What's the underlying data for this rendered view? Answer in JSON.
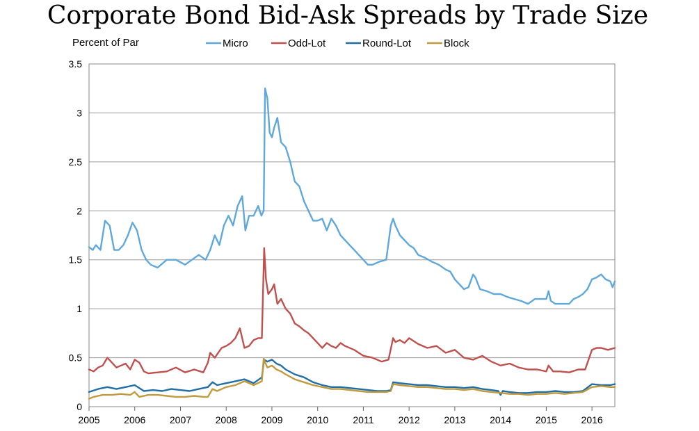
{
  "chart_data": {
    "type": "line",
    "title": "Corporate Bond Bid-Ask Spreads by Trade Size",
    "unit_label": "Percent of Par",
    "legend_position": "top",
    "grid": "horizontal",
    "xlim": [
      2005,
      2016.5
    ],
    "ylim": [
      0,
      3.5
    ],
    "x_ticks": [
      "2005",
      "2006",
      "2007",
      "2008",
      "2009",
      "2010",
      "2011",
      "2012",
      "2013",
      "2014",
      "2015",
      "2016"
    ],
    "y_ticks": [
      "0",
      "0.5",
      "1",
      "1.5",
      "2",
      "2.5",
      "3",
      "3.5"
    ],
    "series": [
      {
        "name": "Micro",
        "color": "#5ea8dc",
        "x": [
          2005.0,
          2005.08,
          2005.15,
          2005.25,
          2005.35,
          2005.45,
          2005.55,
          2005.65,
          2005.75,
          2005.85,
          2005.95,
          2006.05,
          2006.15,
          2006.25,
          2006.35,
          2006.5,
          2006.7,
          2006.9,
          2007.1,
          2007.25,
          2007.4,
          2007.55,
          2007.65,
          2007.75,
          2007.85,
          2007.95,
          2008.05,
          2008.15,
          2008.25,
          2008.35,
          2008.42,
          2008.5,
          2008.6,
          2008.7,
          2008.77,
          2008.82,
          2008.85,
          2008.9,
          2008.95,
          2009.0,
          2009.05,
          2009.12,
          2009.2,
          2009.3,
          2009.4,
          2009.5,
          2009.6,
          2009.7,
          2009.8,
          2009.9,
          2010.0,
          2010.1,
          2010.2,
          2010.3,
          2010.4,
          2010.5,
          2010.6,
          2010.7,
          2010.8,
          2010.9,
          2011.0,
          2011.1,
          2011.2,
          2011.35,
          2011.5,
          2011.6,
          2011.65,
          2011.7,
          2011.8,
          2011.9,
          2012.0,
          2012.1,
          2012.2,
          2012.35,
          2012.5,
          2012.65,
          2012.8,
          2012.9,
          2013.0,
          2013.1,
          2013.2,
          2013.3,
          2013.4,
          2013.45,
          2013.55,
          2013.7,
          2013.85,
          2014.0,
          2014.15,
          2014.3,
          2014.45,
          2014.6,
          2014.75,
          2014.9,
          2015.0,
          2015.05,
          2015.1,
          2015.2,
          2015.35,
          2015.5,
          2015.6,
          2015.7,
          2015.8,
          2015.9,
          2016.0,
          2016.1,
          2016.2,
          2016.3,
          2016.4,
          2016.45,
          2016.5
        ],
        "values": [
          1.63,
          1.6,
          1.65,
          1.6,
          1.9,
          1.85,
          1.6,
          1.6,
          1.65,
          1.75,
          1.88,
          1.8,
          1.6,
          1.5,
          1.45,
          1.42,
          1.5,
          1.5,
          1.45,
          1.5,
          1.55,
          1.5,
          1.6,
          1.75,
          1.65,
          1.85,
          1.95,
          1.85,
          2.05,
          2.15,
          1.8,
          1.95,
          1.95,
          2.05,
          1.95,
          2.0,
          3.25,
          3.15,
          2.8,
          2.75,
          2.85,
          2.95,
          2.7,
          2.65,
          2.5,
          2.3,
          2.25,
          2.1,
          2.0,
          1.9,
          1.9,
          1.92,
          1.8,
          1.92,
          1.85,
          1.75,
          1.7,
          1.65,
          1.6,
          1.55,
          1.5,
          1.45,
          1.45,
          1.48,
          1.5,
          1.85,
          1.92,
          1.85,
          1.75,
          1.7,
          1.65,
          1.62,
          1.55,
          1.52,
          1.48,
          1.45,
          1.4,
          1.38,
          1.3,
          1.25,
          1.2,
          1.22,
          1.35,
          1.32,
          1.2,
          1.18,
          1.15,
          1.15,
          1.12,
          1.1,
          1.08,
          1.05,
          1.1,
          1.1,
          1.1,
          1.18,
          1.08,
          1.05,
          1.05,
          1.05,
          1.1,
          1.12,
          1.15,
          1.2,
          1.3,
          1.32,
          1.35,
          1.3,
          1.28,
          1.22,
          1.28
        ]
      },
      {
        "name": "Odd-Lot",
        "color": "#c0504d",
        "x": [
          2005.0,
          2005.1,
          2005.2,
          2005.3,
          2005.4,
          2005.5,
          2005.6,
          2005.7,
          2005.8,
          2005.9,
          2006.0,
          2006.1,
          2006.2,
          2006.3,
          2006.5,
          2006.7,
          2006.9,
          2007.1,
          2007.3,
          2007.5,
          2007.6,
          2007.65,
          2007.75,
          2007.9,
          2008.0,
          2008.1,
          2008.2,
          2008.3,
          2008.4,
          2008.5,
          2008.6,
          2008.7,
          2008.78,
          2008.83,
          2008.87,
          2008.92,
          2009.0,
          2009.05,
          2009.12,
          2009.2,
          2009.3,
          2009.4,
          2009.5,
          2009.6,
          2009.7,
          2009.8,
          2009.9,
          2010.0,
          2010.1,
          2010.2,
          2010.3,
          2010.4,
          2010.5,
          2010.6,
          2010.8,
          2011.0,
          2011.2,
          2011.4,
          2011.55,
          2011.65,
          2011.7,
          2011.8,
          2011.9,
          2012.0,
          2012.2,
          2012.4,
          2012.6,
          2012.8,
          2013.0,
          2013.2,
          2013.4,
          2013.6,
          2013.8,
          2014.0,
          2014.2,
          2014.4,
          2014.6,
          2014.8,
          2015.0,
          2015.05,
          2015.15,
          2015.3,
          2015.5,
          2015.7,
          2015.85,
          2016.0,
          2016.1,
          2016.2,
          2016.35,
          2016.5
        ],
        "values": [
          0.38,
          0.36,
          0.4,
          0.42,
          0.5,
          0.45,
          0.4,
          0.42,
          0.44,
          0.38,
          0.48,
          0.45,
          0.36,
          0.34,
          0.35,
          0.36,
          0.4,
          0.35,
          0.38,
          0.35,
          0.45,
          0.55,
          0.5,
          0.6,
          0.62,
          0.65,
          0.7,
          0.8,
          0.6,
          0.62,
          0.68,
          0.7,
          0.7,
          1.62,
          1.3,
          1.15,
          1.2,
          1.25,
          1.05,
          1.1,
          1.0,
          0.95,
          0.85,
          0.82,
          0.78,
          0.75,
          0.7,
          0.65,
          0.6,
          0.65,
          0.62,
          0.6,
          0.65,
          0.62,
          0.58,
          0.52,
          0.5,
          0.46,
          0.48,
          0.7,
          0.66,
          0.68,
          0.65,
          0.7,
          0.64,
          0.6,
          0.62,
          0.55,
          0.58,
          0.5,
          0.48,
          0.52,
          0.46,
          0.42,
          0.44,
          0.4,
          0.38,
          0.38,
          0.36,
          0.42,
          0.36,
          0.36,
          0.35,
          0.38,
          0.38,
          0.58,
          0.6,
          0.6,
          0.58,
          0.6
        ]
      },
      {
        "name": "Round-Lot",
        "color": "#1f6fa6",
        "x": [
          2005.0,
          2005.2,
          2005.4,
          2005.6,
          2005.8,
          2006.0,
          2006.2,
          2006.4,
          2006.6,
          2006.8,
          2007.0,
          2007.2,
          2007.4,
          2007.6,
          2007.7,
          2007.8,
          2008.0,
          2008.2,
          2008.4,
          2008.6,
          2008.78,
          2008.83,
          2008.9,
          2009.0,
          2009.1,
          2009.2,
          2009.3,
          2009.5,
          2009.7,
          2009.9,
          2010.1,
          2010.3,
          2010.5,
          2010.7,
          2010.9,
          2011.1,
          2011.3,
          2011.5,
          2011.6,
          2011.65,
          2011.8,
          2012.0,
          2012.2,
          2012.4,
          2012.6,
          2012.8,
          2013.0,
          2013.2,
          2013.4,
          2013.6,
          2013.8,
          2013.95,
          2014.0,
          2014.05,
          2014.2,
          2014.4,
          2014.6,
          2014.8,
          2015.0,
          2015.2,
          2015.4,
          2015.6,
          2015.8,
          2016.0,
          2016.2,
          2016.4,
          2016.5
        ],
        "values": [
          0.15,
          0.18,
          0.2,
          0.18,
          0.2,
          0.22,
          0.16,
          0.17,
          0.16,
          0.18,
          0.17,
          0.16,
          0.18,
          0.2,
          0.25,
          0.22,
          0.24,
          0.26,
          0.28,
          0.24,
          0.3,
          0.48,
          0.46,
          0.48,
          0.44,
          0.42,
          0.38,
          0.33,
          0.3,
          0.25,
          0.22,
          0.2,
          0.2,
          0.19,
          0.18,
          0.17,
          0.16,
          0.16,
          0.17,
          0.25,
          0.24,
          0.23,
          0.22,
          0.22,
          0.21,
          0.2,
          0.2,
          0.19,
          0.2,
          0.18,
          0.17,
          0.16,
          0.12,
          0.16,
          0.15,
          0.14,
          0.14,
          0.15,
          0.15,
          0.16,
          0.15,
          0.15,
          0.16,
          0.23,
          0.22,
          0.22,
          0.23
        ]
      },
      {
        "name": "Block",
        "color": "#c09a3c",
        "x": [
          2005.0,
          2005.1,
          2005.3,
          2005.5,
          2005.7,
          2005.9,
          2006.0,
          2006.1,
          2006.3,
          2006.5,
          2006.7,
          2006.9,
          2007.1,
          2007.3,
          2007.5,
          2007.6,
          2007.7,
          2007.8,
          2008.0,
          2008.2,
          2008.4,
          2008.6,
          2008.78,
          2008.82,
          2008.9,
          2009.0,
          2009.1,
          2009.2,
          2009.3,
          2009.5,
          2009.7,
          2009.9,
          2010.1,
          2010.3,
          2010.5,
          2010.7,
          2010.9,
          2011.1,
          2011.3,
          2011.5,
          2011.6,
          2011.65,
          2011.8,
          2012.0,
          2012.2,
          2012.4,
          2012.6,
          2012.8,
          2013.0,
          2013.2,
          2013.4,
          2013.6,
          2013.8,
          2014.0,
          2014.2,
          2014.4,
          2014.6,
          2014.8,
          2015.0,
          2015.2,
          2015.4,
          2015.6,
          2015.8,
          2016.0,
          2016.2,
          2016.4,
          2016.5
        ],
        "values": [
          0.08,
          0.1,
          0.12,
          0.12,
          0.13,
          0.12,
          0.15,
          0.1,
          0.12,
          0.12,
          0.11,
          0.1,
          0.1,
          0.11,
          0.1,
          0.1,
          0.18,
          0.16,
          0.2,
          0.22,
          0.26,
          0.22,
          0.26,
          0.49,
          0.4,
          0.42,
          0.38,
          0.36,
          0.33,
          0.28,
          0.25,
          0.22,
          0.2,
          0.18,
          0.18,
          0.17,
          0.16,
          0.15,
          0.15,
          0.15,
          0.16,
          0.23,
          0.22,
          0.21,
          0.2,
          0.2,
          0.19,
          0.18,
          0.18,
          0.17,
          0.18,
          0.16,
          0.15,
          0.14,
          0.13,
          0.13,
          0.12,
          0.13,
          0.13,
          0.14,
          0.13,
          0.14,
          0.15,
          0.2,
          0.21,
          0.2,
          0.2
        ]
      }
    ]
  }
}
